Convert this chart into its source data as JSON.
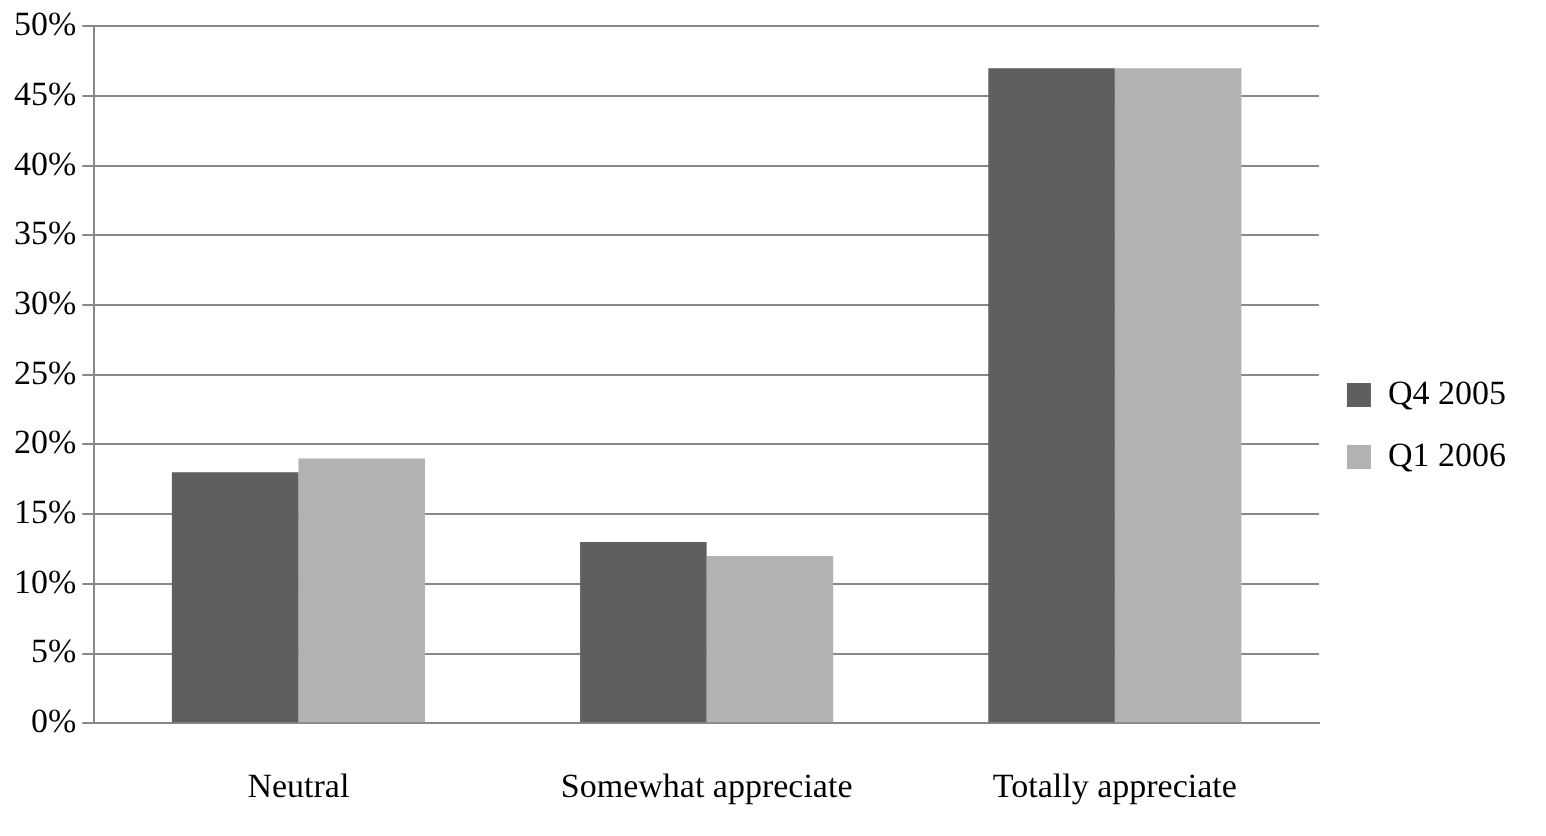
{
  "chart_data": {
    "type": "bar",
    "categories": [
      "Neutral",
      "Somewhat appreciate",
      "Totally appreciate"
    ],
    "series": [
      {
        "name": "Q4 2005",
        "color": "#5f5f5f",
        "values": [
          18,
          13,
          47
        ]
      },
      {
        "name": "Q1 2006",
        "color": "#b2b2b2",
        "values": [
          19,
          12,
          47
        ]
      }
    ],
    "ylim": [
      0,
      50
    ],
    "yticks": [
      {
        "value": 0,
        "label": "0%"
      },
      {
        "value": 5,
        "label": "5%"
      },
      {
        "value": 10,
        "label": "10%"
      },
      {
        "value": 15,
        "label": "15%"
      },
      {
        "value": 20,
        "label": "20%"
      },
      {
        "value": 25,
        "label": "25%"
      },
      {
        "value": 30,
        "label": "30%"
      },
      {
        "value": 35,
        "label": "35%"
      },
      {
        "value": 40,
        "label": "40%"
      },
      {
        "value": 45,
        "label": "45%"
      },
      {
        "value": 50,
        "label": "50%"
      }
    ],
    "grid": "y",
    "legend": "right"
  }
}
